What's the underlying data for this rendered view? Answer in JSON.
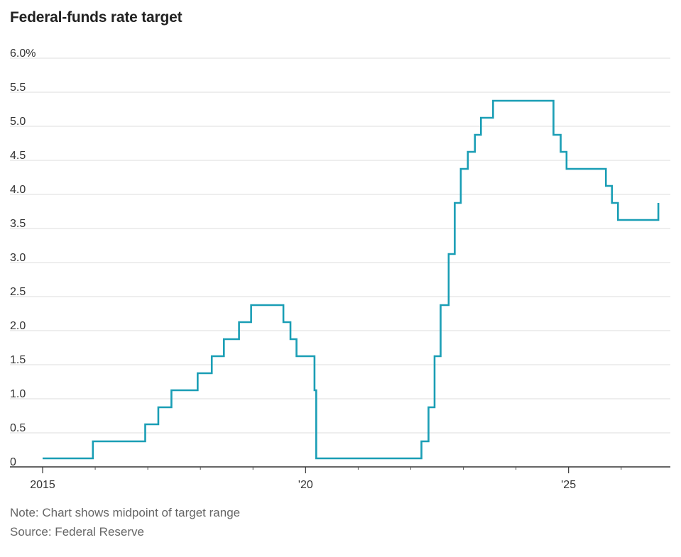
{
  "chart_data": {
    "type": "line",
    "step": true,
    "title": "Federal-funds rate target",
    "xlabel": "",
    "ylabel": "",
    "y_unit": "%",
    "ylim": [
      0,
      6
    ],
    "y_ticks": [
      {
        "value": 0,
        "label": "0"
      },
      {
        "value": 0.5,
        "label": "0.5"
      },
      {
        "value": 1.0,
        "label": "1.0"
      },
      {
        "value": 1.5,
        "label": "1.5"
      },
      {
        "value": 2.0,
        "label": "2.0"
      },
      {
        "value": 2.5,
        "label": "2.5"
      },
      {
        "value": 3.0,
        "label": "3.0"
      },
      {
        "value": 3.5,
        "label": "3.5"
      },
      {
        "value": 4.0,
        "label": "4.0"
      },
      {
        "value": 4.5,
        "label": "4.5"
      },
      {
        "value": 5.0,
        "label": "5.0"
      },
      {
        "value": 5.5,
        "label": "5.5"
      },
      {
        "value": 6.0,
        "label": "6.0%"
      }
    ],
    "xlim": [
      2015.0,
      2026.8
    ],
    "x_ticks": [
      {
        "value": 2015,
        "label": "2015"
      },
      {
        "value": 2020,
        "label": "'20"
      },
      {
        "value": 2025,
        "label": "'25"
      }
    ],
    "x_minor_ticks": [
      2016,
      2017,
      2018,
      2019,
      2021,
      2022,
      2023,
      2024,
      2026
    ],
    "grid": true,
    "line_color": "#1a9eb5",
    "series": [
      {
        "name": "",
        "points": [
          {
            "date": "2015-01-01",
            "rate": 0.125
          },
          {
            "date": "2015-12-16",
            "rate": 0.375
          },
          {
            "date": "2016-12-14",
            "rate": 0.625
          },
          {
            "date": "2017-03-15",
            "rate": 0.875
          },
          {
            "date": "2017-06-14",
            "rate": 1.125
          },
          {
            "date": "2017-12-13",
            "rate": 1.375
          },
          {
            "date": "2018-03-21",
            "rate": 1.625
          },
          {
            "date": "2018-06-13",
            "rate": 1.875
          },
          {
            "date": "2018-09-26",
            "rate": 2.125
          },
          {
            "date": "2018-12-19",
            "rate": 2.375
          },
          {
            "date": "2019-07-31",
            "rate": 2.125
          },
          {
            "date": "2019-09-18",
            "rate": 1.875
          },
          {
            "date": "2019-10-30",
            "rate": 1.625
          },
          {
            "date": "2020-03-03",
            "rate": 1.125
          },
          {
            "date": "2020-03-15",
            "rate": 0.125
          },
          {
            "date": "2022-03-16",
            "rate": 0.375
          },
          {
            "date": "2022-05-04",
            "rate": 0.875
          },
          {
            "date": "2022-06-15",
            "rate": 1.625
          },
          {
            "date": "2022-07-27",
            "rate": 2.375
          },
          {
            "date": "2022-09-21",
            "rate": 3.125
          },
          {
            "date": "2022-11-02",
            "rate": 3.875
          },
          {
            "date": "2022-12-14",
            "rate": 4.375
          },
          {
            "date": "2023-02-01",
            "rate": 4.625
          },
          {
            "date": "2023-03-22",
            "rate": 4.875
          },
          {
            "date": "2023-05-03",
            "rate": 5.125
          },
          {
            "date": "2023-07-26",
            "rate": 5.375
          },
          {
            "date": "2024-09-18",
            "rate": 4.875
          },
          {
            "date": "2024-11-07",
            "rate": 4.625
          },
          {
            "date": "2024-12-18",
            "rate": 4.375
          },
          {
            "date": "2025-09-17",
            "rate": 4.125
          },
          {
            "date": "2025-10-29",
            "rate": 3.875
          },
          {
            "date": "2025-12-10",
            "rate": 3.625
          },
          {
            "date": "2026-09-16",
            "rate": 3.875
          }
        ]
      }
    ]
  },
  "notes": {
    "note": "Note: Chart shows midpoint of target range",
    "source": "Source: Federal Reserve"
  }
}
